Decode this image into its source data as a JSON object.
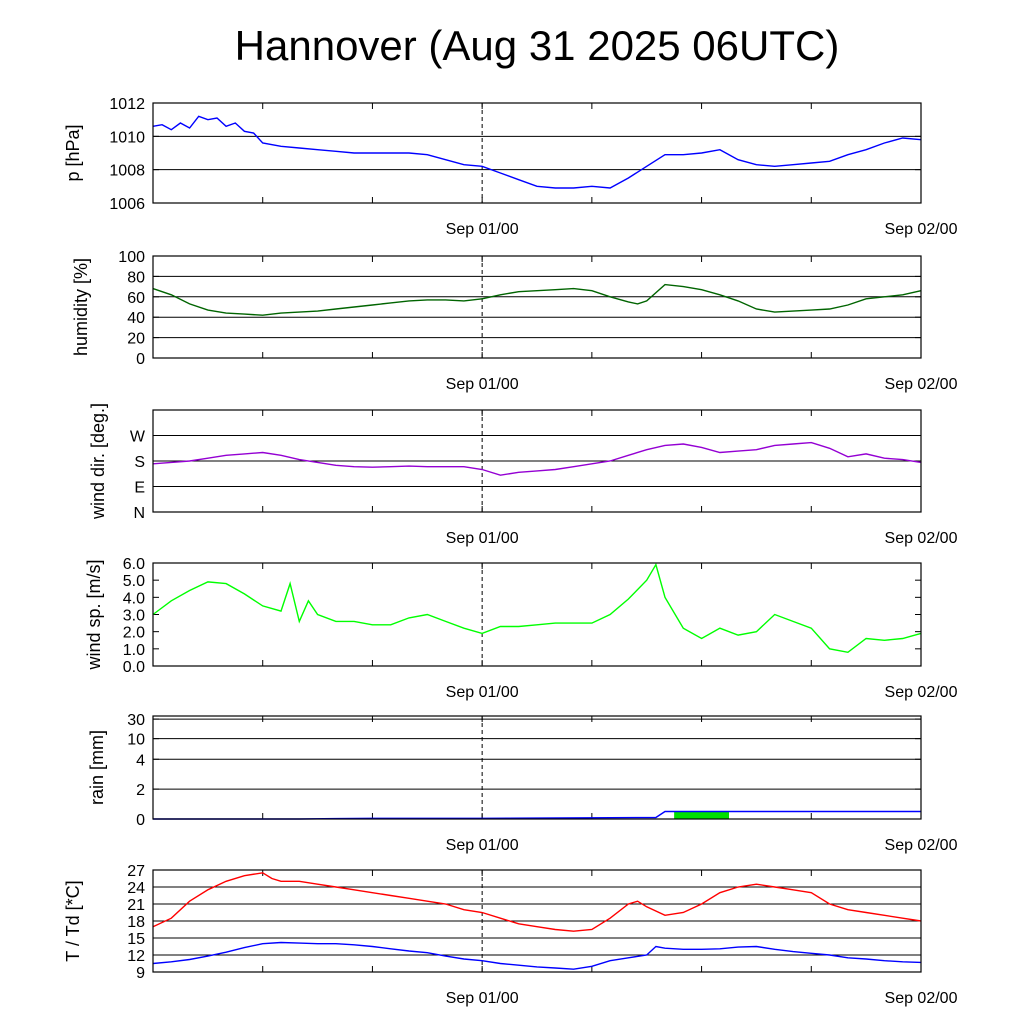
{
  "title": "Hannover (Aug 31 2025 06UTC)",
  "colors": {
    "pressure": "#0000ff",
    "humidity": "#006400",
    "wind_dir": "#9400d3",
    "wind_speed": "#00ff00",
    "rain_line": "#0000ff",
    "rain_fill": "#00e000",
    "temperature": "#ff0000",
    "dewpoint": "#0000ff",
    "grid": "#000000",
    "frame": "#000000"
  },
  "chart_data": [
    {
      "type": "line",
      "panel": "pressure",
      "ylabel": "p [hPa]",
      "ylim": [
        1006,
        1012
      ],
      "yticks": [
        "1006",
        "1008",
        "1010",
        "1012"
      ],
      "grid": true,
      "x_tick_labels": [
        "Sep 01/00",
        "Sep 02/00"
      ],
      "x_range_hours": [
        0,
        42
      ],
      "marker_line_hour": 18,
      "series": [
        {
          "x": [
            0,
            0.5,
            1,
            1.5,
            2,
            2.5,
            3,
            3.5,
            4,
            4.5,
            5,
            5.5,
            6,
            7,
            8,
            9,
            10,
            11,
            12,
            13,
            14,
            15,
            16,
            17,
            18,
            19,
            20,
            21,
            22,
            23,
            24,
            25,
            26,
            27,
            28,
            28.5,
            29,
            30,
            31,
            32,
            33,
            34,
            35,
            36,
            37,
            38,
            39,
            40,
            41,
            42
          ],
          "y": [
            1010.6,
            1010.7,
            1010.4,
            1010.8,
            1010.5,
            1011.2,
            1011.0,
            1011.1,
            1010.6,
            1010.8,
            1010.3,
            1010.2,
            1009.6,
            1009.4,
            1009.3,
            1009.2,
            1009.1,
            1009.0,
            1009.0,
            1009.0,
            1009.0,
            1008.9,
            1008.6,
            1008.3,
            1008.2,
            1007.8,
            1007.4,
            1007.0,
            1006.9,
            1006.9,
            1007.0,
            1006.9,
            1007.5,
            1008.2,
            1008.9,
            1008.9,
            1008.9,
            1009.0,
            1009.2,
            1008.6,
            1008.3,
            1008.2,
            1008.3,
            1008.4,
            1008.5,
            1008.9,
            1009.2,
            1009.6,
            1009.9,
            1009.8
          ]
        }
      ]
    },
    {
      "type": "line",
      "panel": "humidity",
      "ylabel": "humidity [%]",
      "ylim": [
        0,
        100
      ],
      "yticks": [
        "0",
        "20",
        "40",
        "60",
        "80",
        "100"
      ],
      "grid": true,
      "x_tick_labels": [
        "Sep 01/00",
        "Sep 02/00"
      ],
      "x_range_hours": [
        0,
        42
      ],
      "marker_line_hour": 18,
      "series": [
        {
          "x": [
            0,
            1,
            2,
            3,
            4,
            5,
            6,
            7,
            8,
            9,
            10,
            11,
            12,
            13,
            14,
            15,
            16,
            17,
            18,
            19,
            20,
            21,
            22,
            23,
            24,
            25,
            26,
            26.5,
            27,
            28,
            29,
            30,
            31,
            32,
            33,
            34,
            35,
            36,
            37,
            38,
            39,
            40,
            41,
            42
          ],
          "y": [
            68,
            62,
            53,
            47,
            44,
            43,
            42,
            44,
            45,
            46,
            48,
            50,
            52,
            54,
            56,
            57,
            57,
            56,
            58,
            62,
            65,
            66,
            67,
            68,
            66,
            60,
            55,
            53,
            56,
            72,
            70,
            67,
            62,
            56,
            48,
            45,
            46,
            47,
            48,
            52,
            58,
            60,
            62,
            66
          ]
        }
      ]
    },
    {
      "type": "line",
      "panel": "wind_direction",
      "ylabel": "wind dir. [deg.]",
      "ylim": [
        0,
        360
      ],
      "ytick_values": [
        0,
        90,
        180,
        270
      ],
      "yticks": [
        "N",
        "E",
        "S",
        "W"
      ],
      "grid": true,
      "x_tick_labels": [
        "Sep 01/00",
        "Sep 02/00"
      ],
      "x_range_hours": [
        0,
        42
      ],
      "marker_line_hour": 18,
      "series": [
        {
          "x": [
            0,
            1,
            2,
            3,
            4,
            5,
            6,
            7,
            8,
            9,
            10,
            11,
            12,
            13,
            14,
            15,
            16,
            17,
            18,
            19,
            20,
            21,
            22,
            23,
            24,
            25,
            26,
            27,
            28,
            29,
            30,
            31,
            32,
            33,
            34,
            35,
            36,
            37,
            38,
            39,
            40,
            41,
            42
          ],
          "y": [
            170,
            175,
            180,
            190,
            200,
            205,
            210,
            200,
            185,
            175,
            165,
            160,
            158,
            160,
            162,
            160,
            160,
            160,
            150,
            130,
            140,
            145,
            150,
            160,
            170,
            180,
            200,
            220,
            235,
            240,
            228,
            210,
            215,
            220,
            235,
            240,
            245,
            225,
            195,
            205,
            190,
            185,
            175
          ]
        }
      ]
    },
    {
      "type": "line",
      "panel": "wind_speed",
      "ylabel": "wind sp. [m/s]",
      "ylim": [
        0,
        6
      ],
      "yticks": [
        "0.0",
        "1.0",
        "2.0",
        "3.0",
        "4.0",
        "5.0",
        "6.0"
      ],
      "grid": false,
      "x_tick_labels": [
        "Sep 01/00",
        "Sep 02/00"
      ],
      "x_range_hours": [
        0,
        42
      ],
      "marker_line_hour": 18,
      "series": [
        {
          "x": [
            0,
            1,
            2,
            3,
            4,
            5,
            6,
            7,
            7.5,
            8,
            8.5,
            9,
            10,
            11,
            12,
            13,
            14,
            15,
            16,
            17,
            18,
            19,
            20,
            21,
            22,
            23,
            24,
            25,
            26,
            27,
            27.5,
            28,
            29,
            30,
            31,
            32,
            33,
            34,
            35,
            36,
            37,
            38,
            39,
            40,
            41,
            42
          ],
          "y": [
            3.0,
            3.8,
            4.4,
            4.9,
            4.8,
            4.2,
            3.5,
            3.2,
            4.8,
            2.6,
            3.8,
            3.0,
            2.6,
            2.6,
            2.4,
            2.4,
            2.8,
            3.0,
            2.6,
            2.2,
            1.9,
            2.3,
            2.3,
            2.4,
            2.5,
            2.5,
            2.5,
            3.0,
            3.9,
            5.0,
            5.9,
            4.0,
            2.2,
            1.6,
            2.2,
            1.8,
            2.0,
            3.0,
            2.6,
            2.2,
            1.0,
            0.8,
            1.6,
            1.5,
            1.6,
            1.9
          ]
        }
      ]
    },
    {
      "type": "area",
      "panel": "rain",
      "ylabel": "rain [mm]",
      "ytick_values": [
        0,
        2,
        4,
        10,
        30
      ],
      "yticks": [
        "0",
        "2",
        "4",
        "10",
        "30"
      ],
      "grid": true,
      "x_tick_labels": [
        "Sep 01/00",
        "Sep 02/00"
      ],
      "x_range_hours": [
        0,
        42
      ],
      "marker_line_hour": 18,
      "series": [
        {
          "x": [
            0,
            8,
            10,
            12,
            18,
            27.5,
            28,
            42
          ],
          "y": [
            0,
            0,
            0.03,
            0.05,
            0.05,
            0.1,
            0.5,
            0.5
          ]
        }
      ],
      "bars": [
        {
          "x0": 28.5,
          "x1": 31.5,
          "value": 0.5
        }
      ]
    },
    {
      "type": "line",
      "panel": "temperature",
      "ylabel": "T / Td [*C]",
      "ylim": [
        9,
        27
      ],
      "yticks": [
        "9",
        "12",
        "15",
        "18",
        "21",
        "24",
        "27"
      ],
      "grid": true,
      "x_tick_labels": [
        "Sep 01/00",
        "Sep 02/00"
      ],
      "x_range_hours": [
        0,
        42
      ],
      "marker_line_hour": 18,
      "series": [
        {
          "x": [
            0,
            1,
            2,
            3,
            4,
            5,
            6,
            6.5,
            7,
            8,
            9,
            10,
            11,
            12,
            13,
            14,
            15,
            16,
            17,
            18,
            19,
            20,
            21,
            22,
            23,
            24,
            25,
            26,
            26.5,
            27,
            28,
            29,
            30,
            31,
            32,
            33,
            34,
            35,
            36,
            37,
            38,
            39,
            40,
            41,
            42
          ],
          "y": [
            17,
            18.5,
            21.5,
            23.5,
            25,
            26,
            26.5,
            25.5,
            25,
            25,
            24.5,
            24,
            23.5,
            23,
            22.5,
            22,
            21.5,
            21,
            20,
            19.5,
            18.5,
            17.5,
            17,
            16.5,
            16.2,
            16.5,
            18.5,
            21,
            21.5,
            20.5,
            19,
            19.5,
            21,
            23,
            24,
            24.5,
            24,
            23.5,
            23,
            21,
            20,
            19.5,
            19,
            18.5,
            18
          ]
        },
        {
          "x": [
            0,
            1,
            2,
            3,
            4,
            5,
            6,
            7,
            8,
            9,
            10,
            11,
            12,
            13,
            14,
            15,
            16,
            17,
            18,
            19,
            20,
            21,
            22,
            23,
            24,
            25,
            26,
            27,
            27.5,
            28,
            29,
            30,
            31,
            32,
            33,
            34,
            35,
            36,
            37,
            38,
            39,
            40,
            41,
            42
          ],
          "y": [
            10.5,
            10.8,
            11.2,
            11.8,
            12.5,
            13.3,
            14,
            14.2,
            14.1,
            14,
            14,
            13.8,
            13.5,
            13.1,
            12.7,
            12.4,
            11.8,
            11.3,
            11,
            10.5,
            10.2,
            9.9,
            9.7,
            9.5,
            10,
            11,
            11.5,
            12,
            13.5,
            13.2,
            13,
            13,
            13.1,
            13.4,
            13.5,
            13,
            12.6,
            12.3,
            12,
            11.5,
            11.3,
            11,
            10.8,
            10.7
          ]
        }
      ]
    }
  ]
}
